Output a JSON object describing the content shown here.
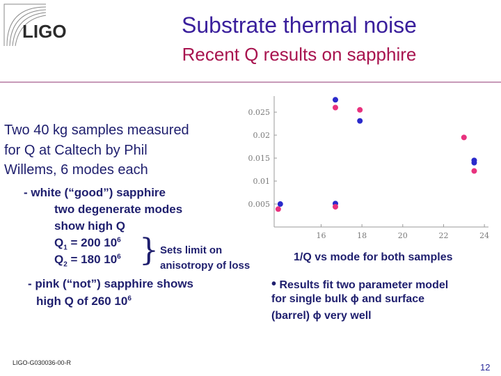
{
  "logo_text": "LIGO",
  "title": "Substrate thermal noise",
  "subtitle": "Recent Q results on sapphire",
  "intro_lines": [
    "Two 40 kg samples measured",
    "for Q at Caltech by Phil",
    "Willems, 6 modes each"
  ],
  "white": {
    "heading": "- white (“good”) sapphire",
    "line1": "two degenerate modes",
    "line2": "show high Q",
    "q1_label": "Q",
    "q1_sub": "1",
    "q1_value": " = 200 10",
    "q1_exp": "6",
    "q2_label": "Q",
    "q2_sub": "2",
    "q2_value": " = 180 10",
    "q2_exp": "6",
    "brace_note_line1": "Sets limit on",
    "brace_note_line2": "anisotropy of loss"
  },
  "pink": {
    "heading": "- pink (“not”) sapphire shows",
    "line": "high Q of 260 10",
    "exp": "6"
  },
  "chart_caption": "1/Q vs mode for both samples",
  "result": {
    "bullet": "•",
    "line1": "Results fit two parameter model",
    "line2": "for single bulk ϕ and surface",
    "line3": "(barrel) ϕ very well"
  },
  "footer_id": "LIGO-G030036-00-R",
  "page_number": "12",
  "colors": {
    "title": "#3a1f9c",
    "subtitle": "#a8144f",
    "divider": "#c79ab8",
    "blue_series": "#2a2acb",
    "pink_series": "#e8327e"
  },
  "chart_data": {
    "type": "scatter",
    "x_ticks": [
      16,
      18,
      20,
      22,
      24
    ],
    "y_ticks": [
      0.005,
      0.01,
      0.015,
      0.02,
      0.025
    ],
    "x_tick_labels": [
      "16",
      "18",
      "20",
      "22",
      "24"
    ],
    "y_tick_labels": [
      "0.005",
      "0.01",
      "0.015",
      "0.02",
      "0.025"
    ],
    "xlim": [
      13.7,
      24.2
    ],
    "ylim": [
      0,
      0.0285
    ],
    "grid": false,
    "series": [
      {
        "color": "#2a2acb",
        "points": [
          [
            14,
            0.005
          ],
          [
            16.7,
            0.0051
          ],
          [
            16.7,
            0.0277
          ],
          [
            17.9,
            0.0231
          ],
          [
            23.5,
            0.0145
          ],
          [
            23.5,
            0.014
          ]
        ]
      },
      {
        "color": "#e8327e",
        "points": [
          [
            13.9,
            0.0039
          ],
          [
            16.7,
            0.0044
          ],
          [
            16.7,
            0.026
          ],
          [
            17.9,
            0.0255
          ],
          [
            23.0,
            0.0195
          ],
          [
            23.5,
            0.0122
          ]
        ]
      }
    ]
  }
}
